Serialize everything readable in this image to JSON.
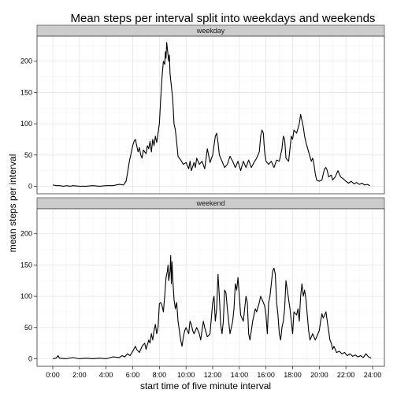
{
  "chart_data": {
    "type": "line",
    "title": "Mean steps per interval split into weekdays and weekends",
    "xlabel": "start time of five minute interval",
    "ylabel": "mean steps per interval",
    "x_unit": "hours",
    "xlim": [
      0,
      24
    ],
    "ylim": [
      -12,
      240
    ],
    "grid": true,
    "xticks": [
      0,
      2,
      4,
      6,
      8,
      10,
      12,
      14,
      16,
      18,
      20,
      22,
      24
    ],
    "xtick_labels": [
      "0:00",
      "2:00",
      "4:00",
      "6:00",
      "8:00",
      "10:00",
      "12:00",
      "14:00",
      "16:00",
      "18:00",
      "20:00",
      "22:00",
      "24:00"
    ],
    "yticks": [
      0,
      50,
      100,
      150,
      200
    ],
    "ytick_labels": [
      "0",
      "50",
      "100",
      "150",
      "200"
    ],
    "line_color": "#000000",
    "strip_fill": "#cccccc",
    "panels": [
      {
        "label": "weekday",
        "points": [
          [
            0.0,
            2
          ],
          [
            0.3,
            1
          ],
          [
            0.5,
            1
          ],
          [
            0.8,
            0
          ],
          [
            1.0,
            1
          ],
          [
            1.3,
            0
          ],
          [
            1.5,
            1
          ],
          [
            2.0,
            0
          ],
          [
            2.5,
            0
          ],
          [
            3.0,
            1
          ],
          [
            3.5,
            0
          ],
          [
            4.0,
            1
          ],
          [
            4.5,
            1
          ],
          [
            5.0,
            3
          ],
          [
            5.3,
            2
          ],
          [
            5.5,
            8
          ],
          [
            5.6,
            20
          ],
          [
            5.75,
            40
          ],
          [
            5.9,
            55
          ],
          [
            6.0,
            65
          ],
          [
            6.1,
            72
          ],
          [
            6.2,
            75
          ],
          [
            6.3,
            65
          ],
          [
            6.4,
            55
          ],
          [
            6.5,
            62
          ],
          [
            6.6,
            50
          ],
          [
            6.7,
            45
          ],
          [
            6.8,
            58
          ],
          [
            7.0,
            52
          ],
          [
            7.1,
            65
          ],
          [
            7.2,
            60
          ],
          [
            7.3,
            72
          ],
          [
            7.4,
            55
          ],
          [
            7.5,
            75
          ],
          [
            7.6,
            65
          ],
          [
            7.7,
            80
          ],
          [
            7.8,
            70
          ],
          [
            7.9,
            85
          ],
          [
            8.0,
            100
          ],
          [
            8.1,
            140
          ],
          [
            8.2,
            175
          ],
          [
            8.3,
            200
          ],
          [
            8.4,
            195
          ],
          [
            8.45,
            215
          ],
          [
            8.5,
            205
          ],
          [
            8.55,
            230
          ],
          [
            8.6,
            220
          ],
          [
            8.7,
            200
          ],
          [
            8.75,
            210
          ],
          [
            8.8,
            180
          ],
          [
            8.9,
            160
          ],
          [
            9.0,
            140
          ],
          [
            9.1,
            100
          ],
          [
            9.2,
            90
          ],
          [
            9.3,
            70
          ],
          [
            9.4,
            48
          ],
          [
            9.6,
            42
          ],
          [
            9.8,
            35
          ],
          [
            10.0,
            38
          ],
          [
            10.2,
            28
          ],
          [
            10.3,
            40
          ],
          [
            10.4,
            25
          ],
          [
            10.6,
            38
          ],
          [
            10.7,
            30
          ],
          [
            10.8,
            45
          ],
          [
            11.0,
            35
          ],
          [
            11.2,
            40
          ],
          [
            11.4,
            28
          ],
          [
            11.6,
            60
          ],
          [
            11.8,
            38
          ],
          [
            12.0,
            50
          ],
          [
            12.2,
            80
          ],
          [
            12.3,
            85
          ],
          [
            12.4,
            70
          ],
          [
            12.5,
            50
          ],
          [
            12.7,
            40
          ],
          [
            12.9,
            30
          ],
          [
            13.1,
            35
          ],
          [
            13.3,
            48
          ],
          [
            13.5,
            40
          ],
          [
            13.7,
            30
          ],
          [
            13.9,
            40
          ],
          [
            14.1,
            25
          ],
          [
            14.3,
            40
          ],
          [
            14.5,
            30
          ],
          [
            14.7,
            42
          ],
          [
            14.9,
            30
          ],
          [
            15.1,
            38
          ],
          [
            15.3,
            45
          ],
          [
            15.5,
            55
          ],
          [
            15.6,
            80
          ],
          [
            15.7,
            90
          ],
          [
            15.8,
            85
          ],
          [
            15.9,
            55
          ],
          [
            16.0,
            40
          ],
          [
            16.2,
            35
          ],
          [
            16.4,
            40
          ],
          [
            16.6,
            30
          ],
          [
            16.8,
            42
          ],
          [
            17.0,
            40
          ],
          [
            17.2,
            60
          ],
          [
            17.3,
            80
          ],
          [
            17.4,
            75
          ],
          [
            17.5,
            45
          ],
          [
            17.7,
            40
          ],
          [
            17.9,
            80
          ],
          [
            18.0,
            75
          ],
          [
            18.1,
            90
          ],
          [
            18.3,
            85
          ],
          [
            18.5,
            100
          ],
          [
            18.6,
            115
          ],
          [
            18.7,
            105
          ],
          [
            18.8,
            95
          ],
          [
            18.9,
            80
          ],
          [
            19.0,
            70
          ],
          [
            19.2,
            55
          ],
          [
            19.4,
            40
          ],
          [
            19.5,
            45
          ],
          [
            19.6,
            35
          ],
          [
            19.7,
            20
          ],
          [
            19.8,
            10
          ],
          [
            20.0,
            8
          ],
          [
            20.2,
            10
          ],
          [
            20.3,
            20
          ],
          [
            20.4,
            28
          ],
          [
            20.5,
            30
          ],
          [
            20.6,
            25
          ],
          [
            20.7,
            15
          ],
          [
            20.9,
            18
          ],
          [
            21.0,
            10
          ],
          [
            21.2,
            15
          ],
          [
            21.4,
            25
          ],
          [
            21.5,
            20
          ],
          [
            21.6,
            15
          ],
          [
            21.8,
            12
          ],
          [
            22.0,
            8
          ],
          [
            22.2,
            5
          ],
          [
            22.4,
            8
          ],
          [
            22.6,
            4
          ],
          [
            22.8,
            6
          ],
          [
            23.0,
            3
          ],
          [
            23.2,
            5
          ],
          [
            23.4,
            2
          ],
          [
            23.6,
            3
          ],
          [
            23.8,
            1
          ]
        ]
      },
      {
        "label": "weekend",
        "points": [
          [
            0.0,
            0
          ],
          [
            0.25,
            1
          ],
          [
            0.4,
            5
          ],
          [
            0.5,
            1
          ],
          [
            1.0,
            0
          ],
          [
            1.5,
            2
          ],
          [
            2.0,
            0
          ],
          [
            2.5,
            1
          ],
          [
            3.0,
            0
          ],
          [
            3.5,
            1
          ],
          [
            4.0,
            0
          ],
          [
            4.5,
            3
          ],
          [
            5.0,
            2
          ],
          [
            5.2,
            5
          ],
          [
            5.4,
            3
          ],
          [
            5.6,
            8
          ],
          [
            5.8,
            5
          ],
          [
            6.0,
            12
          ],
          [
            6.2,
            20
          ],
          [
            6.3,
            15
          ],
          [
            6.5,
            10
          ],
          [
            6.7,
            20
          ],
          [
            6.9,
            25
          ],
          [
            7.0,
            15
          ],
          [
            7.2,
            30
          ],
          [
            7.3,
            25
          ],
          [
            7.4,
            40
          ],
          [
            7.5,
            30
          ],
          [
            7.6,
            45
          ],
          [
            7.7,
            55
          ],
          [
            7.8,
            40
          ],
          [
            7.9,
            50
          ],
          [
            8.0,
            88
          ],
          [
            8.1,
            90
          ],
          [
            8.2,
            85
          ],
          [
            8.3,
            75
          ],
          [
            8.4,
            100
          ],
          [
            8.5,
            130
          ],
          [
            8.6,
            140
          ],
          [
            8.65,
            150
          ],
          [
            8.7,
            125
          ],
          [
            8.8,
            140
          ],
          [
            8.85,
            165
          ],
          [
            8.9,
            120
          ],
          [
            8.95,
            155
          ],
          [
            9.0,
            130
          ],
          [
            9.1,
            95
          ],
          [
            9.2,
            80
          ],
          [
            9.3,
            90
          ],
          [
            9.4,
            60
          ],
          [
            9.5,
            45
          ],
          [
            9.6,
            30
          ],
          [
            9.7,
            20
          ],
          [
            9.8,
            35
          ],
          [
            9.9,
            45
          ],
          [
            10.0,
            50
          ],
          [
            10.2,
            40
          ],
          [
            10.3,
            60
          ],
          [
            10.4,
            55
          ],
          [
            10.5,
            45
          ],
          [
            10.6,
            40
          ],
          [
            10.8,
            50
          ],
          [
            11.0,
            40
          ],
          [
            11.1,
            30
          ],
          [
            11.3,
            60
          ],
          [
            11.4,
            50
          ],
          [
            11.6,
            35
          ],
          [
            11.8,
            40
          ],
          [
            12.0,
            90
          ],
          [
            12.1,
            100
          ],
          [
            12.2,
            60
          ],
          [
            12.3,
            80
          ],
          [
            12.4,
            135
          ],
          [
            12.5,
            100
          ],
          [
            12.6,
            55
          ],
          [
            12.7,
            40
          ],
          [
            12.8,
            60
          ],
          [
            12.9,
            110
          ],
          [
            13.0,
            105
          ],
          [
            13.1,
            80
          ],
          [
            13.3,
            40
          ],
          [
            13.5,
            60
          ],
          [
            13.6,
            80
          ],
          [
            13.7,
            120
          ],
          [
            13.8,
            110
          ],
          [
            13.9,
            130
          ],
          [
            14.0,
            100
          ],
          [
            14.1,
            70
          ],
          [
            14.3,
            60
          ],
          [
            14.4,
            80
          ],
          [
            14.5,
            100
          ],
          [
            14.6,
            90
          ],
          [
            14.7,
            40
          ],
          [
            14.8,
            30
          ],
          [
            15.0,
            60
          ],
          [
            15.2,
            80
          ],
          [
            15.3,
            75
          ],
          [
            15.5,
            90
          ],
          [
            15.6,
            100
          ],
          [
            15.7,
            95
          ],
          [
            15.9,
            85
          ],
          [
            16.0,
            70
          ],
          [
            16.1,
            40
          ],
          [
            16.2,
            90
          ],
          [
            16.3,
            100
          ],
          [
            16.4,
            120
          ],
          [
            16.5,
            140
          ],
          [
            16.6,
            145
          ],
          [
            16.7,
            135
          ],
          [
            16.8,
            90
          ],
          [
            16.9,
            70
          ],
          [
            17.0,
            40
          ],
          [
            17.1,
            30
          ],
          [
            17.2,
            50
          ],
          [
            17.3,
            60
          ],
          [
            17.4,
            80
          ],
          [
            17.5,
            125
          ],
          [
            17.6,
            110
          ],
          [
            17.8,
            80
          ],
          [
            17.9,
            60
          ],
          [
            18.0,
            40
          ],
          [
            18.1,
            75
          ],
          [
            18.3,
            70
          ],
          [
            18.4,
            80
          ],
          [
            18.5,
            60
          ],
          [
            18.6,
            100
          ],
          [
            18.7,
            120
          ],
          [
            18.8,
            100
          ],
          [
            18.9,
            110
          ],
          [
            19.0,
            95
          ],
          [
            19.2,
            45
          ],
          [
            19.3,
            30
          ],
          [
            19.5,
            40
          ],
          [
            19.7,
            30
          ],
          [
            19.9,
            40
          ],
          [
            20.0,
            45
          ],
          [
            20.1,
            60
          ],
          [
            20.2,
            72
          ],
          [
            20.3,
            65
          ],
          [
            20.4,
            70
          ],
          [
            20.5,
            75
          ],
          [
            20.6,
            60
          ],
          [
            20.7,
            45
          ],
          [
            20.8,
            30
          ],
          [
            20.9,
            25
          ],
          [
            21.0,
            15
          ],
          [
            21.1,
            20
          ],
          [
            21.3,
            10
          ],
          [
            21.5,
            12
          ],
          [
            21.7,
            8
          ],
          [
            21.9,
            10
          ],
          [
            22.1,
            5
          ],
          [
            22.3,
            8
          ],
          [
            22.5,
            4
          ],
          [
            22.7,
            6
          ],
          [
            22.9,
            3
          ],
          [
            23.1,
            5
          ],
          [
            23.3,
            2
          ],
          [
            23.5,
            8
          ],
          [
            23.7,
            3
          ],
          [
            23.9,
            1
          ]
        ]
      }
    ]
  }
}
